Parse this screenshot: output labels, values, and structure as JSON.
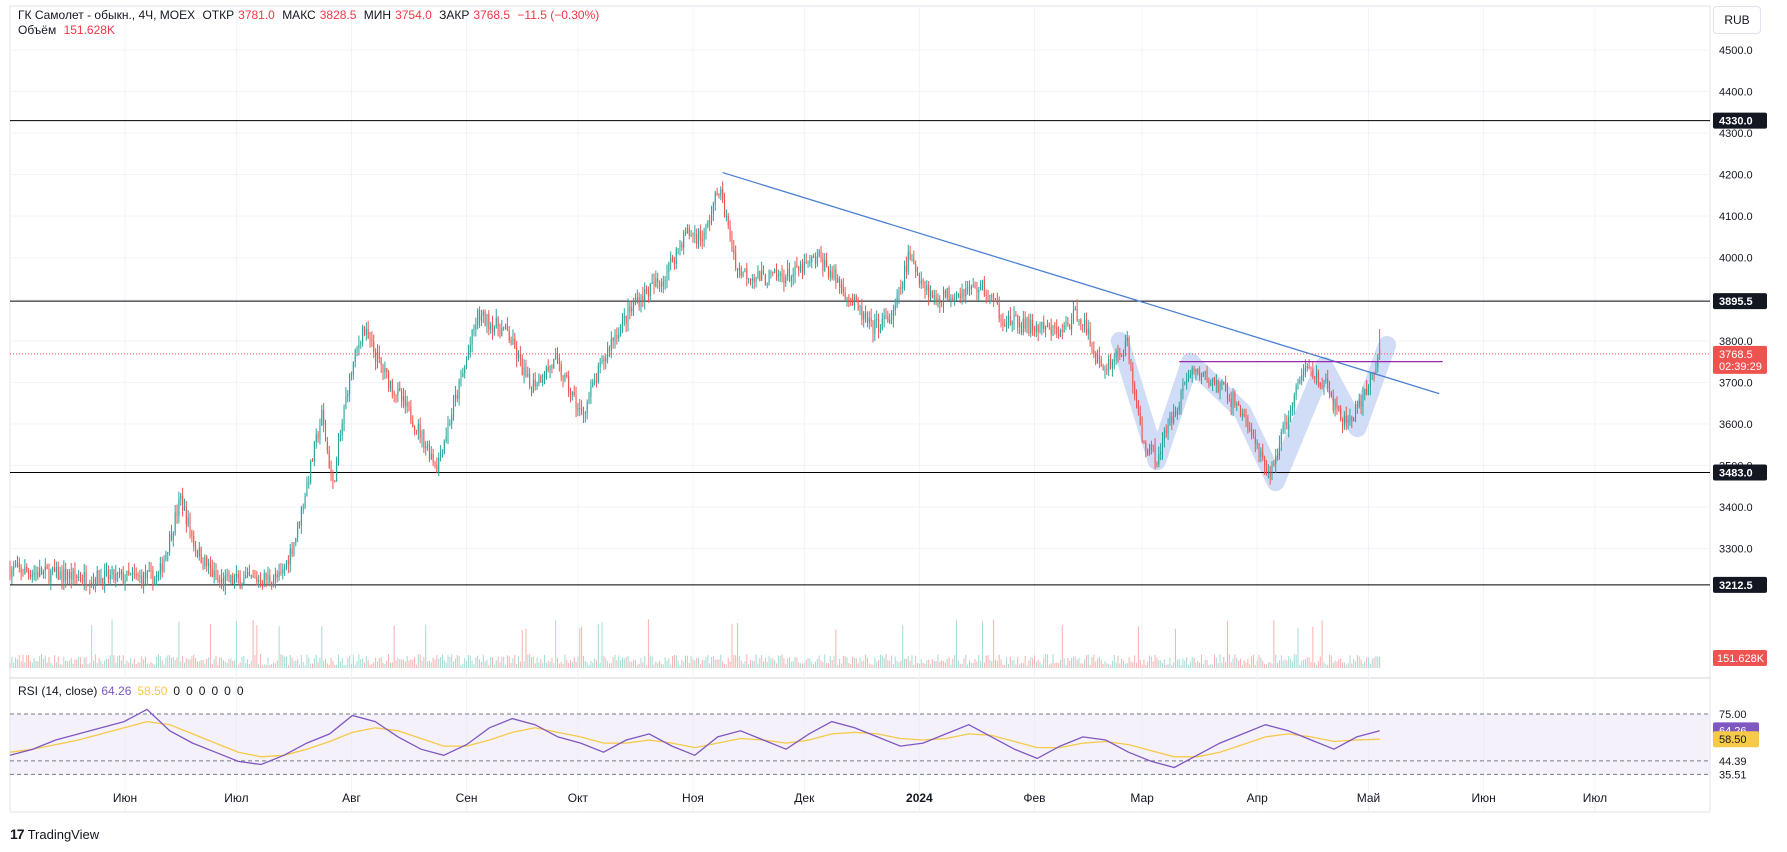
{
  "legend": {
    "symbol": "ГК Самолет - обыкн., 4Ч, MOEX",
    "open_label": "ОТКР",
    "open": "3781.0",
    "high_label": "МАКС",
    "high": "3828.5",
    "low_label": "МИН",
    "low": "3754.0",
    "close_label": "ЗАКР",
    "close": "3768.5",
    "change": "−11.5 (−0.30%)",
    "volume_label": "Объём",
    "volume": "151.628K"
  },
  "currency_button": "RUB",
  "rsi_legend": {
    "label": "RSI (14, close)",
    "rsi": "64.26",
    "ma": "58.50",
    "extras": [
      "0",
      "0",
      "0",
      "0",
      "0",
      "0"
    ]
  },
  "branding": {
    "logo": "TradingView"
  },
  "colors": {
    "up": "#26a69a",
    "down": "#ef5350",
    "trend": "#4a7fd4",
    "rsi": "#7e57c2",
    "rsi_ma": "#f7c948",
    "pattern": "#c9d6f5",
    "level": "#000000"
  },
  "chart_data": [
    {
      "type": "candlestick",
      "title": "ГК Самолет - обыкн., 4Ч, MOEX",
      "ylim": [
        3212.5,
        4520
      ],
      "y_ticks": [
        3300,
        3400,
        3500,
        3600,
        3700,
        3800,
        3900,
        4000,
        4100,
        4200,
        4300,
        4400,
        4500
      ],
      "x_tick_labels": [
        "Июн",
        "Июл",
        "Авг",
        "Сен",
        "Окт",
        "Ноя",
        "Дек",
        "2024",
        "Фев",
        "Мар",
        "Апр",
        "Май",
        "Июн",
        "Июл"
      ],
      "x_range": [
        "2023-05-01",
        "2024-08-01"
      ],
      "grid": true,
      "price_path": [
        {
          "x": "2023-05-01",
          "y": 3250
        },
        {
          "x": "2023-05-21",
          "y": 3230
        },
        {
          "x": "2023-06-10",
          "y": 3230
        },
        {
          "x": "2023-06-16",
          "y": 3420
        },
        {
          "x": "2023-06-20",
          "y": 3300
        },
        {
          "x": "2023-06-26",
          "y": 3220
        },
        {
          "x": "2023-07-13",
          "y": 3230
        },
        {
          "x": "2023-07-17",
          "y": 3330
        },
        {
          "x": "2023-07-24",
          "y": 3620
        },
        {
          "x": "2023-07-27",
          "y": 3450
        },
        {
          "x": "2023-07-31",
          "y": 3690
        },
        {
          "x": "2023-08-04",
          "y": 3830
        },
        {
          "x": "2023-08-10",
          "y": 3720
        },
        {
          "x": "2023-08-17",
          "y": 3620
        },
        {
          "x": "2023-08-24",
          "y": 3500
        },
        {
          "x": "2023-08-31",
          "y": 3720
        },
        {
          "x": "2023-09-04",
          "y": 3860
        },
        {
          "x": "2023-09-12",
          "y": 3820
        },
        {
          "x": "2023-09-18",
          "y": 3690
        },
        {
          "x": "2023-09-25",
          "y": 3750
        },
        {
          "x": "2023-10-02",
          "y": 3620
        },
        {
          "x": "2023-10-10",
          "y": 3800
        },
        {
          "x": "2023-10-17",
          "y": 3900
        },
        {
          "x": "2023-10-24",
          "y": 3950
        },
        {
          "x": "2023-10-30",
          "y": 4060
        },
        {
          "x": "2023-11-04",
          "y": 4050
        },
        {
          "x": "2023-11-08",
          "y": 4170
        },
        {
          "x": "2023-11-13",
          "y": 3970
        },
        {
          "x": "2023-11-20",
          "y": 3950
        },
        {
          "x": "2023-11-28",
          "y": 3960
        },
        {
          "x": "2023-12-05",
          "y": 4000
        },
        {
          "x": "2023-12-12",
          "y": 3920
        },
        {
          "x": "2023-12-19",
          "y": 3830
        },
        {
          "x": "2023-12-25",
          "y": 3860
        },
        {
          "x": "2023-12-29",
          "y": 4000
        },
        {
          "x": "2024-01-05",
          "y": 3900
        },
        {
          "x": "2024-01-12",
          "y": 3920
        },
        {
          "x": "2024-01-18",
          "y": 3930
        },
        {
          "x": "2024-01-24",
          "y": 3850
        },
        {
          "x": "2024-02-01",
          "y": 3830
        },
        {
          "x": "2024-02-08",
          "y": 3820
        },
        {
          "x": "2024-02-13",
          "y": 3870
        },
        {
          "x": "2024-02-19",
          "y": 3730
        },
        {
          "x": "2024-02-26",
          "y": 3790
        },
        {
          "x": "2024-03-01",
          "y": 3560
        },
        {
          "x": "2024-03-05",
          "y": 3520
        },
        {
          "x": "2024-03-10",
          "y": 3640
        },
        {
          "x": "2024-03-14",
          "y": 3730
        },
        {
          "x": "2024-03-22",
          "y": 3690
        },
        {
          "x": "2024-03-28",
          "y": 3630
        },
        {
          "x": "2024-04-04",
          "y": 3470
        },
        {
          "x": "2024-04-08",
          "y": 3580
        },
        {
          "x": "2024-04-14",
          "y": 3740
        },
        {
          "x": "2024-04-19",
          "y": 3700
        },
        {
          "x": "2024-04-24",
          "y": 3600
        },
        {
          "x": "2024-04-29",
          "y": 3640
        },
        {
          "x": "2024-05-04",
          "y": 3768.5
        }
      ],
      "horizontal_levels": [
        4330.0,
        3895.5,
        3483.0,
        3212.5
      ],
      "last_price": 3768.5,
      "countdown": "02:39:29",
      "trendline": [
        {
          "x": "2023-11-09",
          "y": 4205
        },
        {
          "x": "2024-05-20",
          "y": 3673
        }
      ],
      "neckline": {
        "y": 3750,
        "from": "2024-03-11",
        "to": "2024-05-21"
      },
      "pattern_path": [
        {
          "x": "2024-02-24",
          "y": 3800
        },
        {
          "x": "2024-03-05",
          "y": 3510
        },
        {
          "x": "2024-03-14",
          "y": 3750
        },
        {
          "x": "2024-03-28",
          "y": 3630
        },
        {
          "x": "2024-04-06",
          "y": 3460
        },
        {
          "x": "2024-04-19",
          "y": 3740
        },
        {
          "x": "2024-04-28",
          "y": 3590
        },
        {
          "x": "2024-05-06",
          "y": 3790
        }
      ],
      "volume_last": "151.628K"
    },
    {
      "type": "line",
      "title": "RSI (14, close)",
      "ylim": [
        30,
        82
      ],
      "y_ticks": [
        75.0,
        44.39,
        35.51
      ],
      "bands": [
        75.0,
        44.39,
        35.51
      ],
      "series": [
        {
          "name": "RSI",
          "last": 64.26,
          "values": [
            48,
            52,
            58,
            62,
            66,
            70,
            78,
            64,
            56,
            50,
            44,
            42,
            48,
            56,
            62,
            74,
            70,
            60,
            52,
            48,
            55,
            66,
            72,
            68,
            60,
            56,
            50,
            58,
            62,
            54,
            48,
            60,
            64,
            58,
            52,
            62,
            70,
            66,
            60,
            54,
            56,
            62,
            68,
            60,
            52,
            46,
            54,
            60,
            58,
            50,
            44,
            40,
            48,
            56,
            62,
            68,
            64,
            58,
            52,
            60,
            64
          ]
        },
        {
          "name": "MA",
          "last": 58.5,
          "values": [
            50,
            52,
            55,
            58,
            62,
            66,
            70,
            68,
            62,
            56,
            50,
            47,
            48,
            52,
            57,
            63,
            66,
            64,
            59,
            54,
            54,
            58,
            63,
            66,
            63,
            60,
            56,
            56,
            58,
            56,
            53,
            56,
            59,
            58,
            56,
            58,
            62,
            63,
            62,
            59,
            58,
            59,
            62,
            61,
            57,
            53,
            53,
            56,
            57,
            55,
            51,
            47,
            47,
            50,
            55,
            60,
            62,
            60,
            57,
            58,
            58.5
          ]
        }
      ]
    }
  ]
}
